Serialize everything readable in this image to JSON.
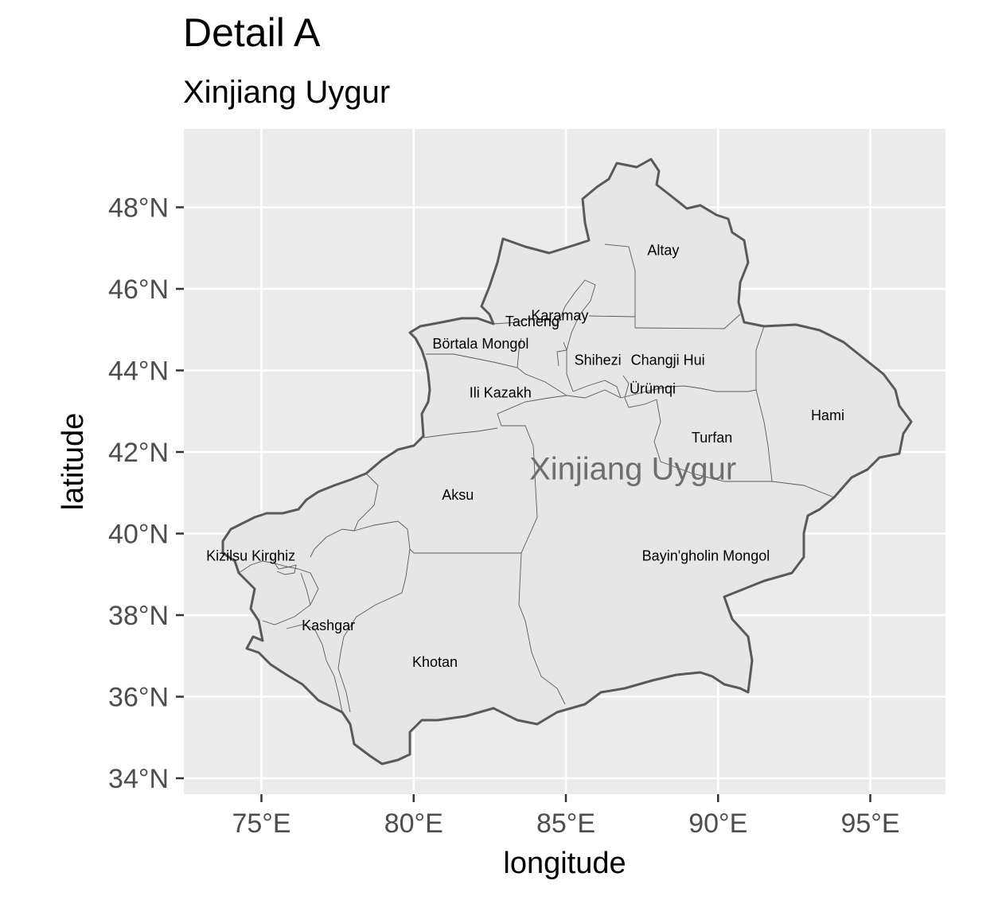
{
  "title": "Detail A",
  "subtitle": "Xinjiang Uygur",
  "x_axis": {
    "label": "longitude",
    "ticks": [
      "75°E",
      "80°E",
      "85°E",
      "90°E",
      "95°E"
    ],
    "values": [
      75,
      80,
      85,
      90,
      95
    ],
    "range": [
      72.5,
      97.5
    ]
  },
  "y_axis": {
    "label": "latitude",
    "ticks": [
      "34°N",
      "36°N",
      "38°N",
      "40°N",
      "42°N",
      "44°N",
      "46°N",
      "48°N"
    ],
    "values": [
      34,
      36,
      38,
      40,
      42,
      44,
      46,
      48
    ],
    "range": [
      33.6,
      49.9
    ]
  },
  "region_name": "Xinjiang Uygur",
  "prefectures": [
    {
      "name": "Altay",
      "lon": 88.2,
      "lat": 46.95
    },
    {
      "name": "Karamay",
      "lon": 84.8,
      "lat": 45.35
    },
    {
      "name": "Tacheng",
      "lon": 83.9,
      "lat": 45.2
    },
    {
      "name": "Börtala Mongol",
      "lon": 82.2,
      "lat": 44.65
    },
    {
      "name": "Shihezi",
      "lon": 86.05,
      "lat": 44.25
    },
    {
      "name": "Changji Hui",
      "lon": 88.35,
      "lat": 44.25
    },
    {
      "name": "Ürümqi",
      "lon": 87.85,
      "lat": 43.55
    },
    {
      "name": "Ili Kazakh",
      "lon": 82.85,
      "lat": 43.45
    },
    {
      "name": "Hami",
      "lon": 93.6,
      "lat": 42.9
    },
    {
      "name": "Turfan",
      "lon": 89.8,
      "lat": 42.35
    },
    {
      "name": "Aksu",
      "lon": 81.45,
      "lat": 40.95
    },
    {
      "name": "Kizilsu Kirghiz",
      "lon": 74.65,
      "lat": 39.45
    },
    {
      "name": "Bayin'gholin Mongol",
      "lon": 89.6,
      "lat": 39.45
    },
    {
      "name": "Kashgar",
      "lon": 77.2,
      "lat": 37.75
    },
    {
      "name": "Khotan",
      "lon": 80.7,
      "lat": 36.85
    }
  ],
  "colors": {
    "panel": "#ebebeb",
    "grid": "#ffffff",
    "fill": "#e6e6e6",
    "outline": "#595959",
    "inner_border": "#5a5a5a"
  }
}
